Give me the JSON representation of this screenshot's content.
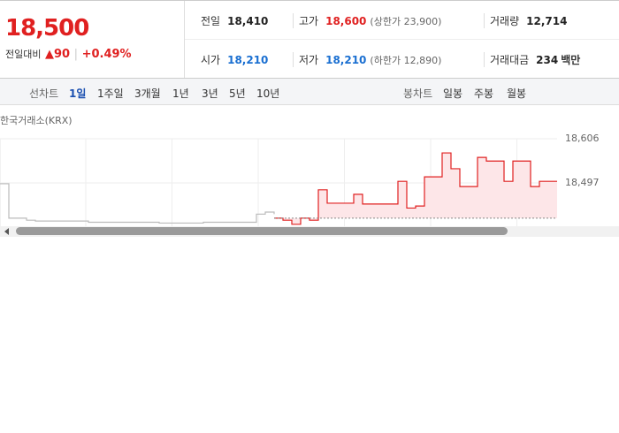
{
  "header": {
    "price": "18,500",
    "change_label": "전일대비",
    "change_value": "90",
    "change_percent": "+0.49%"
  },
  "summary": {
    "rows": [
      [
        {
          "label": "전일",
          "value": "18,410",
          "color": "#222"
        },
        {
          "label": "고가",
          "value": "18,600",
          "color": "#e02020",
          "extra_label": "상한가",
          "extra_value": "23,900"
        },
        {
          "label": "거래량",
          "value": "12,714",
          "color": "#222"
        }
      ],
      [
        {
          "label": "시가",
          "value": "18,210",
          "color": "#1a6fd1"
        },
        {
          "label": "저가",
          "value": "18,210",
          "color": "#1a6fd1",
          "extra_label": "하한가",
          "extra_value": "12,890"
        },
        {
          "label": "거래대금",
          "value": "234",
          "color": "#222",
          "unit": "백만"
        }
      ]
    ]
  },
  "tabs": {
    "line_label": "선차트",
    "line": [
      "1일",
      "1주일",
      "3개월",
      "1년",
      "3년",
      "5년",
      "10년"
    ],
    "candle_label": "봉차트",
    "candle": [
      "일봉",
      "주봉",
      "월봉"
    ]
  },
  "source": "한국거래소(KRX)",
  "chart_data": {
    "type": "line",
    "x": [
      0,
      1,
      2,
      3,
      4,
      5,
      6,
      7,
      8,
      9,
      10,
      11,
      12,
      13,
      14,
      15,
      16,
      17,
      18,
      19,
      20,
      21,
      22,
      23,
      24,
      25,
      26,
      27,
      28,
      29,
      30,
      31,
      32,
      33,
      34,
      35,
      36,
      37,
      38,
      39,
      40,
      41,
      42,
      43,
      44,
      45,
      46,
      47,
      48,
      49,
      50,
      51,
      52,
      53,
      54,
      55,
      56,
      57,
      58,
      59,
      60,
      61,
      62,
      63
    ],
    "xlim": [
      0,
      63
    ],
    "series": [
      {
        "color": "#bbbbbb",
        "values": [
          18495,
          18410,
          18410,
          18405,
          18403,
          18403,
          18403,
          18403,
          18403,
          18403,
          18400,
          18400,
          18400,
          18400,
          18400,
          18400,
          18400,
          18400,
          18398,
          18398,
          18398,
          18398,
          18398,
          18400,
          18400,
          18400,
          18400,
          18400,
          18400,
          18420,
          18425,
          18420,
          null,
          null,
          null,
          null,
          null,
          null,
          null,
          null,
          null,
          null,
          null,
          null,
          null,
          null,
          null,
          null,
          null,
          null,
          null,
          null,
          null,
          null,
          null,
          null,
          null,
          null,
          null,
          null,
          null,
          null,
          null,
          null
        ]
      },
      {
        "color": "#e02020",
        "fill": "#fde6e8",
        "values": [
          null,
          null,
          null,
          null,
          null,
          null,
          null,
          null,
          null,
          null,
          null,
          null,
          null,
          null,
          null,
          null,
          null,
          null,
          null,
          null,
          null,
          null,
          null,
          null,
          null,
          null,
          null,
          null,
          null,
          null,
          null,
          18410,
          18405,
          18395,
          18410,
          18405,
          18480,
          18447,
          18447,
          18447,
          18469,
          18445,
          18445,
          18445,
          18445,
          18501,
          18435,
          18440,
          18512,
          18512,
          18571,
          18532,
          18488,
          18488,
          18560,
          18551,
          18551,
          18501,
          18551,
          18551,
          18488,
          18501,
          18501,
          18501
        ]
      }
    ],
    "baseline": 18410,
    "ylim": [
      18388,
      18606
    ],
    "yticks": [
      {
        "value": 18606,
        "label": "18,606"
      },
      {
        "value": 18497,
        "label": "18,497"
      }
    ],
    "grid": true
  }
}
